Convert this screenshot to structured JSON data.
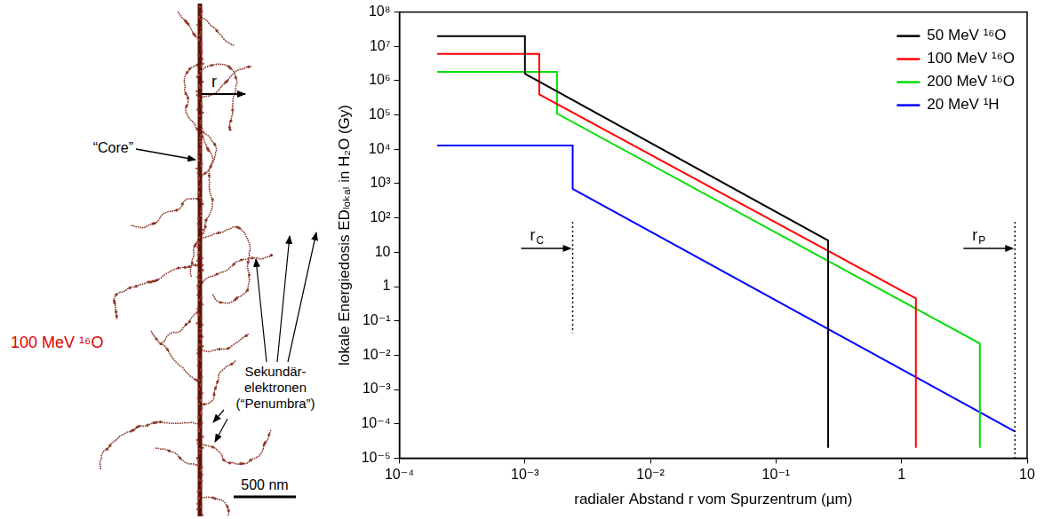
{
  "track_image": {
    "ion_label": "100 MeV ¹⁶O",
    "core_label": "“Core”",
    "radius_label": "r",
    "electron_label": [
      "Sekundär-",
      "elektronen",
      "(“Penumbra”)"
    ],
    "scale_bar_label": "500 nm"
  },
  "chart_data": {
    "type": "line",
    "x_label": "radialer Abstand r vom Spurzentrum (µm)",
    "y_label": "lokale Energiedosis EDₗₒₖₐₗ in H₂O (Gy)",
    "log": true,
    "grid": false,
    "legend": "upper right",
    "xlim": [
      0.0001,
      10
    ],
    "ylim": [
      1e-05,
      100000000
    ],
    "xticks": [
      {
        "value": 0.0001,
        "label": "10⁻⁴"
      },
      {
        "value": 0.001,
        "label": "10⁻³"
      },
      {
        "value": 0.01,
        "label": "10⁻²"
      },
      {
        "value": 0.1,
        "label": "10⁻¹"
      },
      1,
      10
    ],
    "yticks": [
      {
        "value": 1e-05,
        "label": "10⁻⁵"
      },
      {
        "value": 0.0001,
        "label": "10⁻⁴"
      },
      {
        "value": 0.001,
        "label": "10⁻³"
      },
      {
        "value": 0.01,
        "label": "10⁻²"
      },
      {
        "value": 0.1,
        "label": "10⁻¹"
      },
      1,
      10,
      {
        "value": 100,
        "label": "10²"
      },
      {
        "value": 1000,
        "label": "10³"
      },
      {
        "value": 10000,
        "label": "10⁴"
      },
      {
        "value": 100000,
        "label": "10⁵"
      },
      {
        "value": 1000000,
        "label": "10⁶"
      },
      {
        "value": 10000000,
        "label": "10⁷"
      },
      {
        "value": 100000000,
        "label": "10⁸"
      }
    ],
    "series": [
      {
        "name": "50 MeV ¹⁶O",
        "color": "#000000",
        "x": [
          0.0002,
          0.001,
          0.001,
          0.26,
          0.26
        ],
        "values": [
          20000000,
          20000000,
          1600000,
          22,
          2e-05
        ]
      },
      {
        "name": "100 MeV ¹⁶O",
        "color": "#ff0000",
        "x": [
          0.0002,
          0.0013,
          0.0013,
          1.3,
          1.3
        ],
        "values": [
          6000000,
          6000000,
          400000,
          0.45,
          2e-05
        ]
      },
      {
        "name": "200 MeV ¹⁶O",
        "color": "#00dd00",
        "x": [
          0.0002,
          0.0018,
          0.0018,
          4.2,
          4.2
        ],
        "values": [
          1800000,
          1800000,
          110000,
          0.022,
          2e-05
        ]
      },
      {
        "name": "20 MeV ¹H",
        "color": "#0000ff",
        "x": [
          0.0002,
          0.0024,
          0.0024,
          8
        ],
        "values": [
          13000,
          13000,
          700,
          6e-05
        ]
      }
    ],
    "annotations": [
      {
        "text": "r",
        "subscript": "C",
        "x": 0.0024
      },
      {
        "text": "r",
        "subscript": "P",
        "x": 8
      }
    ]
  }
}
